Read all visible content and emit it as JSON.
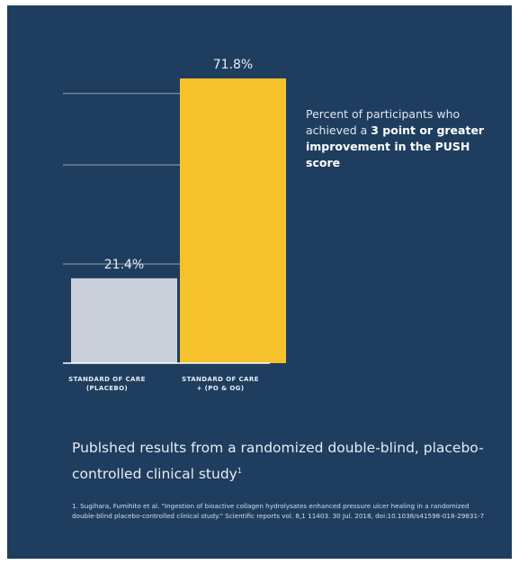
{
  "chart_data": {
    "type": "bar",
    "categories": [
      "STANDARD OF CARE (PLACEBO)",
      "STANDARD OF CARE + (PO & OG)"
    ],
    "category_lines": [
      [
        "STANDARD OF CARE",
        "(PLACEBO)"
      ],
      [
        "STANDARD OF CARE",
        "+ (PO & OG)"
      ]
    ],
    "values": [
      21.4,
      71.8
    ],
    "data_labels": [
      "21.4%",
      "71.8%"
    ],
    "colors": [
      "#c9d0d9",
      "#f5c22b"
    ],
    "ylim": [
      0,
      75
    ],
    "grid_values": [
      25,
      50,
      68
    ],
    "grid": true,
    "title": "",
    "xlabel": "",
    "ylabel": ""
  },
  "description": {
    "part1": "Percent of participants who achieved a ",
    "bold": "3 point or greater improvement in the PUSH score"
  },
  "published": {
    "text": "Publshed results from a randomized double-blind, placebo-controlled clinical study",
    "sup": "1"
  },
  "footnote": "1. Sugihara, Fumihito et al. \"Ingestion of bioactive collagen hydrolysates enhanced pressure ulcer healing in a randomized double-blind placebo-controlled clinical study.\" Scientific reports vol. 8,1 11403. 30 Jul. 2018, doi:10.1038/s41598-018-29831-7",
  "colors": {
    "background": "#1f3e5f",
    "gridline": "#b7c2cf",
    "axis": "#ffffff"
  }
}
